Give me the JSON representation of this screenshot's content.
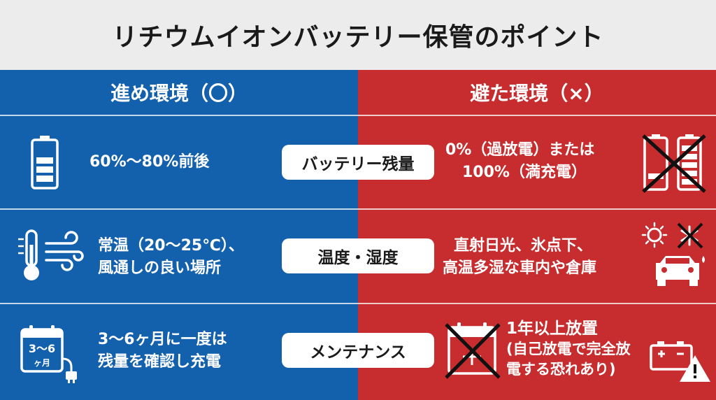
{
  "title": "リチウムイオンバッテリー保管のポイント",
  "columns": {
    "good": {
      "header": "進め環境（〇）",
      "color": "#1360ad"
    },
    "bad": {
      "header": "避た環境（×）",
      "color": "#c72c2e"
    }
  },
  "rows": [
    {
      "category": "バッテリー残量",
      "good": [
        "60%〜80%前後"
      ],
      "bad": [
        "0%（過放電）または",
        "100%（満充電）"
      ],
      "good_icon": "battery-half-icon",
      "bad_icon": "crossed-batteries-icon"
    },
    {
      "category": "温度・湿度",
      "good": [
        "常温（20〜25℃）、",
        "風通しの良い場所"
      ],
      "bad": [
        "直射日光、氷点下、",
        "高温多湿な車内や倉庫"
      ],
      "good_icon": "thermometer-wind-icon",
      "bad_icon": "sun-snow-car-icon"
    },
    {
      "category": "メンテナンス",
      "good": [
        "3〜6ヶ月に一度は",
        "残量を確認し充電"
      ],
      "bad": [
        "1年以上放置",
        "(自己放電で完全放",
        "電する恐れあり)"
      ],
      "good_icon": "calendar-plug-icon",
      "bad_icon": "crossed-calendar-battery-warning-icon",
      "calendar_text": [
        "3〜6",
        "ヶ月"
      ]
    }
  ]
}
